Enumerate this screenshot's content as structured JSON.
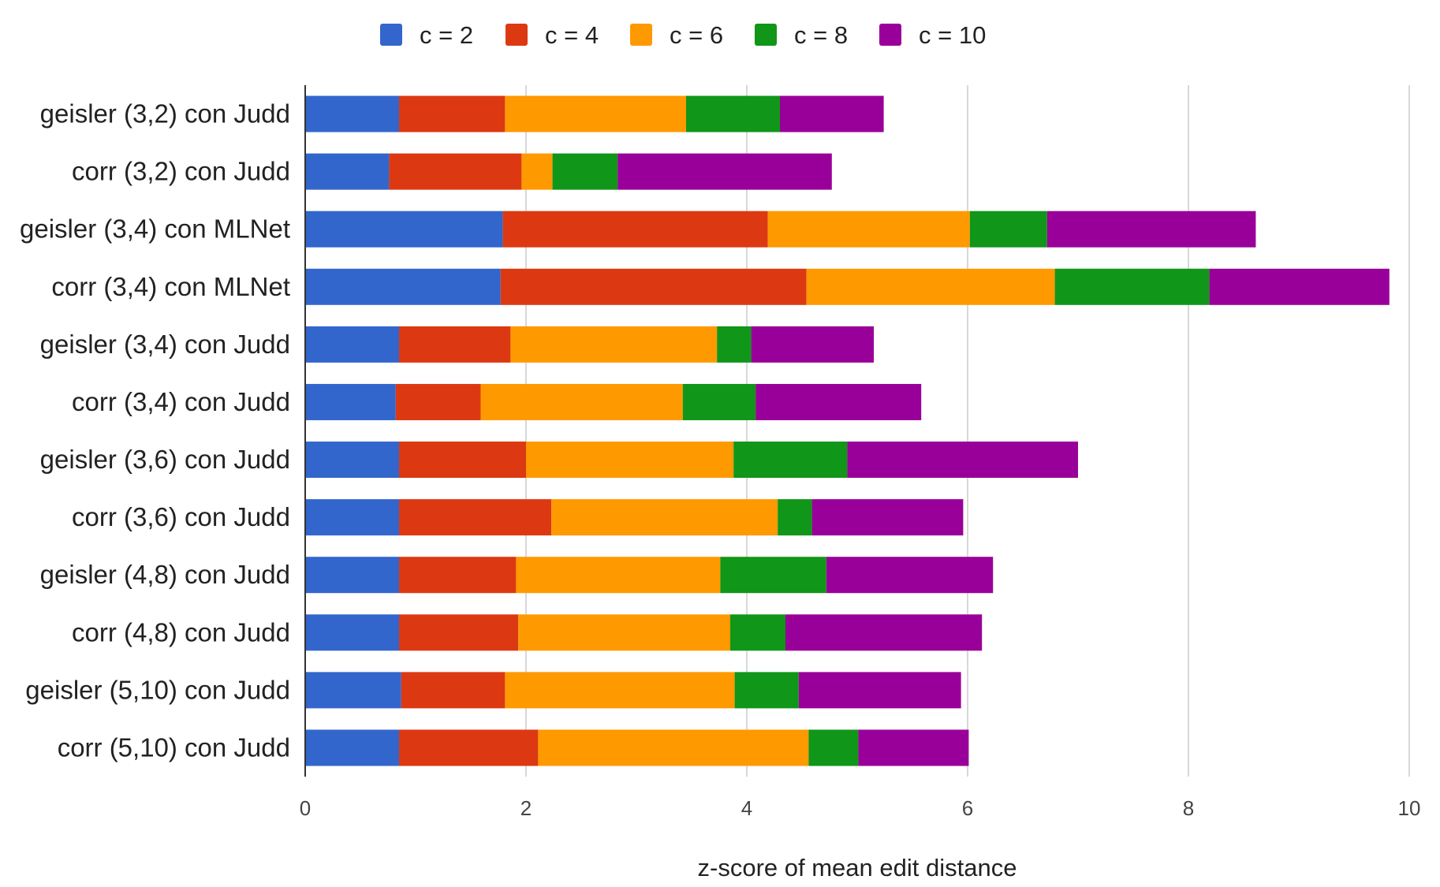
{
  "chart_data": {
    "type": "bar",
    "orientation": "horizontal",
    "stacked": true,
    "title": "",
    "xlabel": "z-score of mean edit distance",
    "ylabel": "",
    "xlim": [
      0,
      10
    ],
    "xticks": [
      0,
      2,
      4,
      6,
      8,
      10
    ],
    "grid": true,
    "legend_position": "top",
    "categories": [
      "geisler (3,2) con Judd",
      "corr (3,2) con Judd",
      "geisler (3,4) con MLNet",
      "corr (3,4) con MLNet",
      "geisler (3,4) con Judd",
      "corr (3,4) con Judd",
      "geisler (3,6) con Judd",
      "corr (3,6) con Judd",
      "geisler (4,8) con Judd",
      "corr (4,8) con Judd",
      "geisler (5,10) con Judd",
      "corr (5,10) con Judd"
    ],
    "series": [
      {
        "name": "c = 2",
        "color": "#3366cc",
        "values": [
          0.85,
          0.76,
          1.79,
          1.77,
          0.85,
          0.82,
          0.85,
          0.85,
          0.85,
          0.85,
          0.87,
          0.85
        ]
      },
      {
        "name": "c = 4",
        "color": "#dc3912",
        "values": [
          0.96,
          1.2,
          2.4,
          2.77,
          1.01,
          0.77,
          1.15,
          1.38,
          1.06,
          1.08,
          0.94,
          1.26
        ]
      },
      {
        "name": "c = 6",
        "color": "#ff9900",
        "values": [
          1.64,
          0.28,
          1.83,
          2.25,
          1.87,
          1.83,
          1.88,
          2.05,
          1.85,
          1.92,
          2.08,
          2.45
        ]
      },
      {
        "name": "c = 8",
        "color": "#109618",
        "values": [
          0.85,
          0.59,
          0.7,
          1.4,
          0.31,
          0.66,
          1.03,
          0.31,
          0.96,
          0.5,
          0.58,
          0.45
        ]
      },
      {
        "name": "c = 10",
        "color": "#990099",
        "values": [
          0.94,
          1.94,
          1.89,
          1.63,
          1.11,
          1.5,
          2.09,
          1.37,
          1.51,
          1.78,
          1.47,
          1.0
        ]
      }
    ]
  }
}
